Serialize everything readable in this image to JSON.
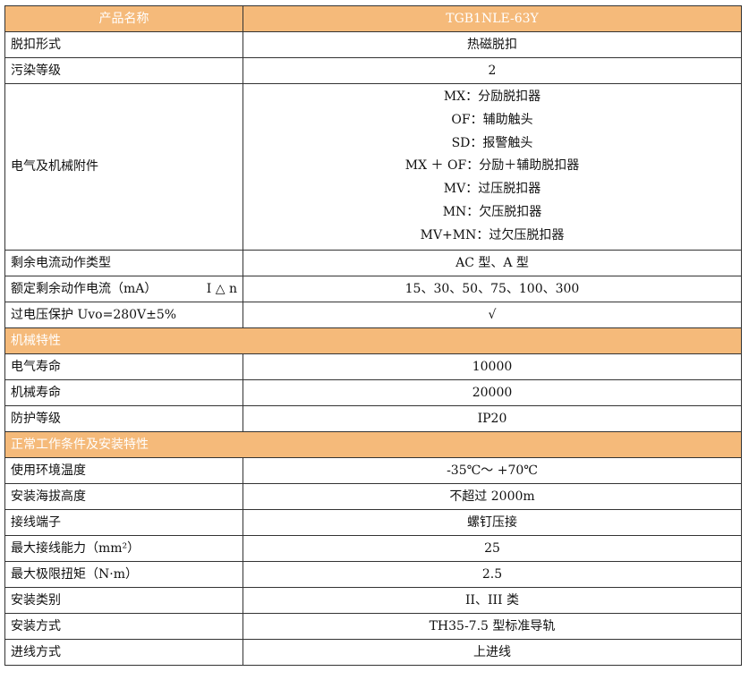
{
  "header": {
    "label": "产品名称",
    "value": "TGB1NLE-63Y"
  },
  "rows_1": [
    {
      "label": "脱扣形式",
      "value": "热磁脱扣"
    },
    {
      "label": "污染等级",
      "value": "2"
    }
  ],
  "accessories": {
    "label": "电气及机械附件",
    "values": [
      "MX：分励脱扣器",
      "OF：辅助触头",
      "SD：报警触头",
      "MX ＋ OF：分励＋辅助脱扣器",
      "MV：过压脱扣器",
      "MN：欠压脱扣器",
      "MV+MN：过欠压脱扣器"
    ]
  },
  "rows_2": [
    {
      "label": "剩余电流动作类型",
      "value": "AC 型、A 型"
    },
    {
      "label": "额定剩余动作电流（mA）",
      "symbol": "I △ n",
      "value": "15、30、50、75、100、300"
    },
    {
      "label": "过电压保护 Uvo=280V±5%",
      "value": "√"
    }
  ],
  "section_mech": "机械特性",
  "rows_3": [
    {
      "label": "电气寿命",
      "value": "10000"
    },
    {
      "label": "机械寿命",
      "value": "20000"
    },
    {
      "label": "防护等级",
      "value": "IP20"
    }
  ],
  "section_env": "正常工作条件及安装特性",
  "rows_4": [
    {
      "label": "使用环境温度",
      "value": "-35℃～ +70℃"
    },
    {
      "label": "安装海拔高度",
      "value": "不超过 2000m"
    },
    {
      "label": "接线端子",
      "value": "螺钉压接"
    },
    {
      "label": "最大接线能力（mm²）",
      "value": "25"
    },
    {
      "label": "最大极限扭矩（N·m）",
      "value": "2.5"
    },
    {
      "label": "安装类别",
      "value": "II、III 类"
    },
    {
      "label": "安装方式",
      "value": "TH35-7.5 型标准导轨"
    },
    {
      "label": "进线方式",
      "value": "上进线"
    }
  ],
  "colors": {
    "header_bg": "#F5BA7A",
    "header_text": "#FFFFFF",
    "border": "#333333"
  }
}
